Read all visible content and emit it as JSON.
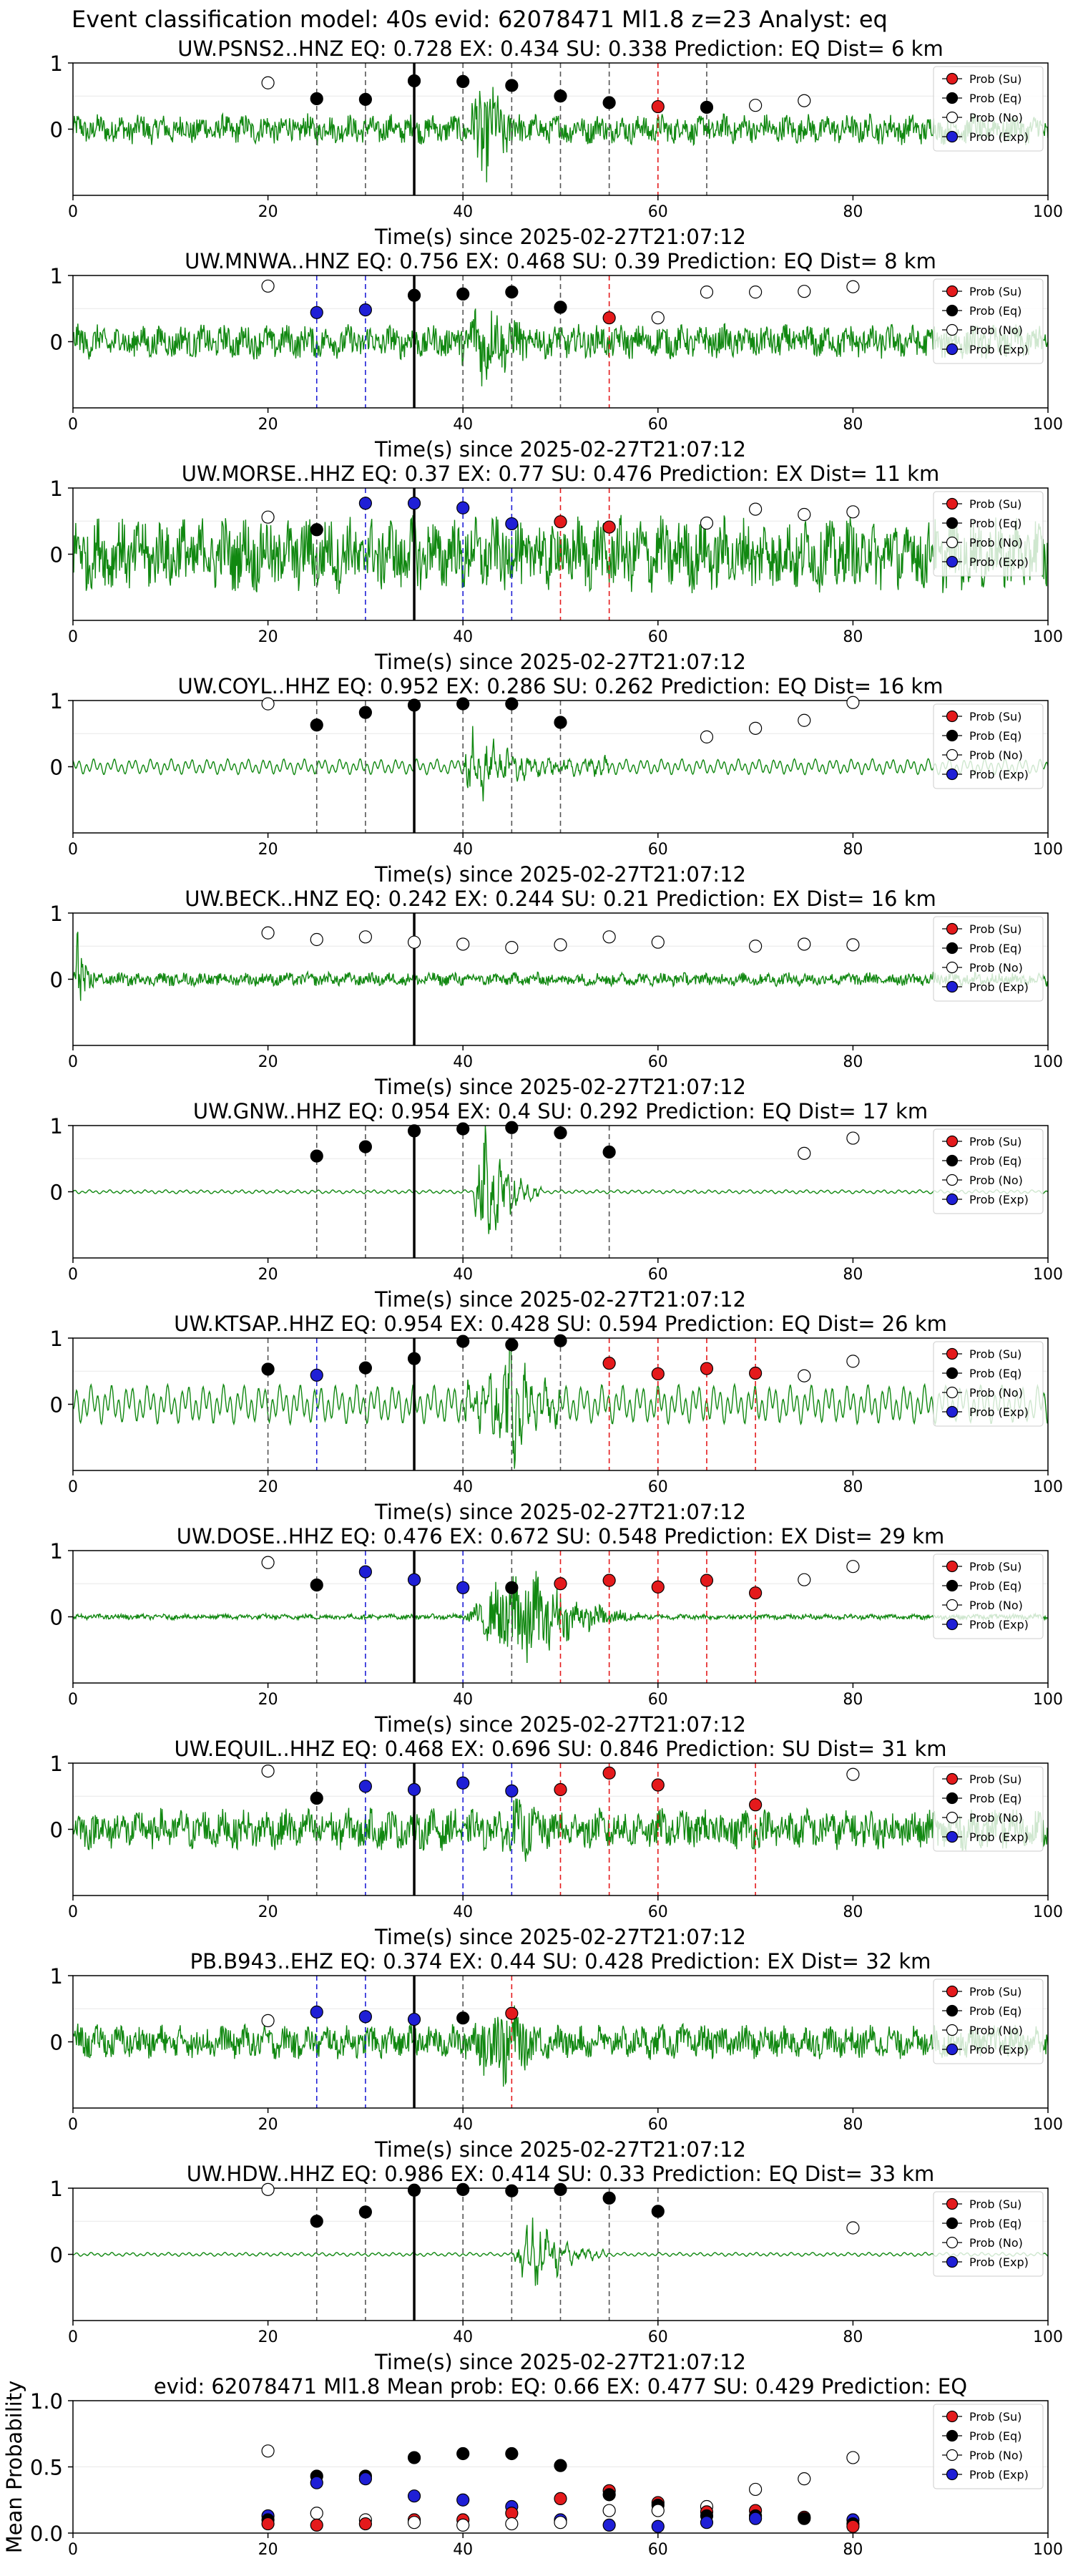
{
  "figure_title": "Event classification model: 40s evid: 62078471 Ml1.8 z=23 Analyst: eq",
  "time_label": "Time(s) since 2025-02-27T21:07:12",
  "legend": [
    "Prob (Su)",
    "Prob (Eq)",
    "Prob (No)",
    "Prob (Exp)"
  ],
  "colors": {
    "su": "#e41a1c",
    "eq": "#000000",
    "no": "#ffffff",
    "exp": "#1f1fd6",
    "waveform": "#118811"
  },
  "chart_data": [
    {
      "type": "scatter",
      "title": "UW.PSNS2..HNZ   EQ: 0.728   EX: 0.434   SU: 0.338   Prediction: EQ    Dist= 6 km",
      "xlim": [
        0,
        100
      ],
      "ylim": [
        -1,
        1
      ],
      "xticks": [
        0,
        20,
        40,
        60,
        80,
        100
      ],
      "yticks": [
        1,
        0
      ],
      "amp": 0.22,
      "burst": {
        "start": 40,
        "peak": 42,
        "end": 50,
        "amp": 0.9
      },
      "style": "noise",
      "pick": 35,
      "points": [
        [
          20,
          0.7,
          "no"
        ],
        [
          25,
          0.46,
          "eq"
        ],
        [
          30,
          0.45,
          "eq"
        ],
        [
          35,
          0.73,
          "eq"
        ],
        [
          40,
          0.72,
          "eq"
        ],
        [
          45,
          0.66,
          "eq"
        ],
        [
          50,
          0.5,
          "eq"
        ],
        [
          55,
          0.4,
          "eq"
        ],
        [
          60,
          0.34,
          "su"
        ],
        [
          65,
          0.33,
          "eq"
        ],
        [
          70,
          0.36,
          "no"
        ],
        [
          75,
          0.43,
          "no"
        ]
      ]
    },
    {
      "type": "scatter",
      "title": "UW.MNWA..HNZ   EQ: 0.756   EX: 0.468   SU: 0.39   Prediction: EQ    Dist= 8 km",
      "xlim": [
        0,
        100
      ],
      "ylim": [
        -1,
        1
      ],
      "xticks": [
        0,
        20,
        40,
        60,
        80,
        100
      ],
      "yticks": [
        1,
        0
      ],
      "amp": 0.25,
      "burst": {
        "start": 38,
        "peak": 42,
        "end": 55,
        "amp": 0.7
      },
      "style": "noise",
      "pick": 35,
      "points": [
        [
          20,
          0.84,
          "no"
        ],
        [
          25,
          0.44,
          "exp"
        ],
        [
          30,
          0.48,
          "exp"
        ],
        [
          35,
          0.7,
          "eq"
        ],
        [
          40,
          0.72,
          "eq"
        ],
        [
          45,
          0.75,
          "eq"
        ],
        [
          50,
          0.52,
          "eq"
        ],
        [
          55,
          0.36,
          "su"
        ],
        [
          60,
          0.36,
          "no"
        ],
        [
          65,
          0.75,
          "no"
        ],
        [
          70,
          0.75,
          "no"
        ],
        [
          75,
          0.76,
          "no"
        ],
        [
          80,
          0.83,
          "no"
        ]
      ]
    },
    {
      "type": "scatter",
      "title": "UW.MORSE..HHZ   EQ: 0.37   EX: 0.77   SU: 0.476   Prediction: EX    Dist= 11 km",
      "xlim": [
        0,
        100
      ],
      "ylim": [
        -1,
        1
      ],
      "xticks": [
        0,
        20,
        40,
        60,
        80,
        100
      ],
      "yticks": [
        1,
        0
      ],
      "amp": 0.55,
      "burst": {
        "start": 42,
        "peak": 46,
        "end": 52,
        "amp": 0.6
      },
      "style": "noise",
      "pick": 35,
      "points": [
        [
          20,
          0.56,
          "no"
        ],
        [
          25,
          0.37,
          "eq"
        ],
        [
          30,
          0.77,
          "exp"
        ],
        [
          35,
          0.77,
          "exp"
        ],
        [
          40,
          0.7,
          "exp"
        ],
        [
          45,
          0.46,
          "exp"
        ],
        [
          50,
          0.49,
          "su"
        ],
        [
          55,
          0.41,
          "su"
        ],
        [
          65,
          0.47,
          "no"
        ],
        [
          70,
          0.68,
          "no"
        ],
        [
          75,
          0.6,
          "no"
        ],
        [
          80,
          0.64,
          "no"
        ]
      ]
    },
    {
      "type": "scatter",
      "title": "UW.COYL..HHZ   EQ: 0.952   EX: 0.286   SU: 0.262   Prediction: EQ    Dist= 16 km",
      "xlim": [
        0,
        100
      ],
      "ylim": [
        -1,
        1
      ],
      "xticks": [
        0,
        20,
        40,
        60,
        80,
        100
      ],
      "yticks": [
        1,
        0
      ],
      "amp": 0.12,
      "burst": {
        "start": 40,
        "peak": 40.5,
        "end": 55,
        "amp": 0.45
      },
      "style": "smooth",
      "pick": 35,
      "points": [
        [
          20,
          0.95,
          "no"
        ],
        [
          25,
          0.63,
          "eq"
        ],
        [
          30,
          0.82,
          "eq"
        ],
        [
          35,
          0.93,
          "eq"
        ],
        [
          40,
          0.95,
          "eq"
        ],
        [
          45,
          0.95,
          "eq"
        ],
        [
          50,
          0.67,
          "eq"
        ],
        [
          65,
          0.45,
          "no"
        ],
        [
          70,
          0.58,
          "no"
        ],
        [
          75,
          0.7,
          "no"
        ],
        [
          80,
          0.97,
          "no"
        ]
      ]
    },
    {
      "type": "scatter",
      "title": "UW.BECK..HNZ   EQ: 0.242   EX: 0.244   SU: 0.21   Prediction: EX    Dist= 16 km",
      "xlim": [
        0,
        100
      ],
      "ylim": [
        -1,
        1
      ],
      "xticks": [
        0,
        20,
        40,
        60,
        80,
        100
      ],
      "yticks": [
        1,
        0
      ],
      "amp": 0.1,
      "burst": {
        "start": 0,
        "peak": 0.5,
        "end": 3,
        "amp": 0.8
      },
      "style": "noise",
      "pick": 35,
      "points": [
        [
          20,
          0.7,
          "no"
        ],
        [
          25,
          0.6,
          "no"
        ],
        [
          30,
          0.64,
          "no"
        ],
        [
          35,
          0.56,
          "no"
        ],
        [
          40,
          0.53,
          "no"
        ],
        [
          45,
          0.48,
          "no"
        ],
        [
          50,
          0.52,
          "no"
        ],
        [
          55,
          0.64,
          "no"
        ],
        [
          60,
          0.56,
          "no"
        ],
        [
          70,
          0.5,
          "no"
        ],
        [
          75,
          0.53,
          "no"
        ],
        [
          80,
          0.52,
          "no"
        ]
      ]
    },
    {
      "type": "scatter",
      "title": "UW.GNW..HHZ   EQ: 0.954   EX: 0.4   SU: 0.292   Prediction: EQ    Dist= 17 km",
      "xlim": [
        0,
        100
      ],
      "ylim": [
        -1,
        1
      ],
      "xticks": [
        0,
        20,
        40,
        60,
        80,
        100
      ],
      "yticks": [
        1,
        0
      ],
      "amp": 0.03,
      "burst": {
        "start": 41,
        "peak": 42,
        "end": 48,
        "amp": 0.9
      },
      "style": "smooth",
      "pick": 35,
      "points": [
        [
          25,
          0.54,
          "eq"
        ],
        [
          30,
          0.68,
          "eq"
        ],
        [
          35,
          0.92,
          "eq"
        ],
        [
          40,
          0.95,
          "eq"
        ],
        [
          45,
          0.97,
          "eq"
        ],
        [
          50,
          0.89,
          "eq"
        ],
        [
          55,
          0.6,
          "eq"
        ],
        [
          75,
          0.58,
          "no"
        ],
        [
          80,
          0.81,
          "no"
        ]
      ]
    },
    {
      "type": "scatter",
      "title": "UW.KTSAP..HHZ   EQ: 0.954   EX: 0.428   SU: 0.594   Prediction: EQ    Dist= 26 km",
      "xlim": [
        0,
        100
      ],
      "ylim": [
        -1,
        1
      ],
      "xticks": [
        0,
        20,
        40,
        60,
        80,
        100
      ],
      "yticks": [
        1,
        0
      ],
      "amp": 0.3,
      "burst": {
        "start": 40,
        "peak": 45,
        "end": 50,
        "amp": 0.9
      },
      "style": "smooth",
      "pick": 35,
      "points": [
        [
          20,
          0.53,
          "eq"
        ],
        [
          25,
          0.44,
          "exp"
        ],
        [
          30,
          0.55,
          "eq"
        ],
        [
          35,
          0.69,
          "eq"
        ],
        [
          40,
          0.95,
          "eq"
        ],
        [
          45,
          0.9,
          "eq"
        ],
        [
          50,
          0.96,
          "eq"
        ],
        [
          55,
          0.62,
          "su"
        ],
        [
          60,
          0.46,
          "su"
        ],
        [
          65,
          0.54,
          "su"
        ],
        [
          70,
          0.47,
          "su"
        ],
        [
          75,
          0.43,
          "no"
        ],
        [
          80,
          0.65,
          "no"
        ]
      ]
    },
    {
      "type": "scatter",
      "title": "UW.DOSE..HHZ   EQ: 0.476   EX: 0.672   SU: 0.548   Prediction: EX    Dist= 29 km",
      "xlim": [
        0,
        100
      ],
      "ylim": [
        -1,
        1
      ],
      "xticks": [
        0,
        20,
        40,
        60,
        80,
        100
      ],
      "yticks": [
        1,
        0
      ],
      "amp": 0.04,
      "burst": {
        "start": 40,
        "peak": 46,
        "end": 58,
        "amp": 0.9
      },
      "style": "noise",
      "pick": 35,
      "points": [
        [
          20,
          0.82,
          "no"
        ],
        [
          25,
          0.48,
          "eq"
        ],
        [
          30,
          0.68,
          "exp"
        ],
        [
          35,
          0.56,
          "exp"
        ],
        [
          40,
          0.44,
          "exp"
        ],
        [
          45,
          0.44,
          "eq"
        ],
        [
          50,
          0.5,
          "su"
        ],
        [
          55,
          0.55,
          "su"
        ],
        [
          60,
          0.45,
          "su"
        ],
        [
          65,
          0.55,
          "su"
        ],
        [
          70,
          0.36,
          "su"
        ],
        [
          75,
          0.56,
          "no"
        ],
        [
          80,
          0.76,
          "no"
        ]
      ]
    },
    {
      "type": "scatter",
      "title": "UW.EQUIL..HHZ   EQ: 0.468   EX: 0.696   SU: 0.846   Prediction: SU    Dist= 31 km",
      "xlim": [
        0,
        100
      ],
      "ylim": [
        -1,
        1
      ],
      "xticks": [
        0,
        20,
        40,
        60,
        80,
        100
      ],
      "yticks": [
        1,
        0
      ],
      "amp": 0.3,
      "burst": {
        "start": 40,
        "peak": 46,
        "end": 58,
        "amp": 0.5
      },
      "style": "noise",
      "pick": 35,
      "points": [
        [
          20,
          0.88,
          "no"
        ],
        [
          25,
          0.47,
          "eq"
        ],
        [
          30,
          0.65,
          "exp"
        ],
        [
          35,
          0.6,
          "exp"
        ],
        [
          40,
          0.7,
          "exp"
        ],
        [
          45,
          0.58,
          "exp"
        ],
        [
          50,
          0.6,
          "su"
        ],
        [
          55,
          0.85,
          "su"
        ],
        [
          60,
          0.67,
          "su"
        ],
        [
          70,
          0.37,
          "su"
        ],
        [
          80,
          0.83,
          "no"
        ]
      ]
    },
    {
      "type": "scatter",
      "title": "PB.B943..EHZ   EQ: 0.374   EX: 0.44   SU: 0.428   Prediction: EX    Dist= 32 km",
      "xlim": [
        0,
        100
      ],
      "ylim": [
        -1,
        1
      ],
      "xticks": [
        0,
        20,
        40,
        60,
        80,
        100
      ],
      "yticks": [
        1,
        0
      ],
      "amp": 0.25,
      "burst": {
        "start": 38,
        "peak": 44,
        "end": 55,
        "amp": 0.7
      },
      "style": "noise",
      "pick": 35,
      "points": [
        [
          20,
          0.32,
          "no"
        ],
        [
          25,
          0.45,
          "exp"
        ],
        [
          30,
          0.38,
          "exp"
        ],
        [
          35,
          0.34,
          "exp"
        ],
        [
          40,
          0.36,
          "eq"
        ],
        [
          45,
          0.43,
          "su"
        ]
      ]
    },
    {
      "type": "scatter",
      "title": "UW.HDW..HHZ   EQ: 0.986   EX: 0.414   SU: 0.33   Prediction: EQ    Dist= 33 km",
      "xlim": [
        0,
        100
      ],
      "ylim": [
        -1,
        1
      ],
      "xticks": [
        0,
        20,
        40,
        60,
        80,
        100
      ],
      "yticks": [
        1,
        0
      ],
      "amp": 0.03,
      "burst": {
        "start": 45,
        "peak": 47,
        "end": 55,
        "amp": 0.5
      },
      "style": "smooth",
      "pick": 35,
      "points": [
        [
          20,
          0.98,
          "no"
        ],
        [
          25,
          0.5,
          "eq"
        ],
        [
          30,
          0.64,
          "eq"
        ],
        [
          35,
          0.97,
          "eq"
        ],
        [
          40,
          0.98,
          "eq"
        ],
        [
          45,
          0.96,
          "eq"
        ],
        [
          50,
          0.98,
          "eq"
        ],
        [
          55,
          0.85,
          "eq"
        ],
        [
          60,
          0.65,
          "eq"
        ],
        [
          80,
          0.4,
          "no"
        ]
      ]
    },
    {
      "type": "scatter",
      "title": "evid: 62078471  Ml1.8   Mean prob:    EQ: 0.66   EX: 0.477   SU: 0.429   Prediction: EQ",
      "ylabel": "Mean Probability",
      "xlim": [
        0,
        100
      ],
      "ylim": [
        0,
        1
      ],
      "xticks": [
        0,
        20,
        40,
        60,
        80,
        100
      ],
      "yticks": [
        1.0,
        0.5,
        0.0
      ],
      "points": [
        [
          20,
          0.62,
          "no"
        ],
        [
          20,
          0.13,
          "exp"
        ],
        [
          20,
          0.1,
          "eq"
        ],
        [
          20,
          0.07,
          "su"
        ],
        [
          25,
          0.43,
          "eq"
        ],
        [
          25,
          0.38,
          "exp"
        ],
        [
          25,
          0.15,
          "no"
        ],
        [
          25,
          0.06,
          "su"
        ],
        [
          30,
          0.43,
          "eq"
        ],
        [
          30,
          0.41,
          "exp"
        ],
        [
          30,
          0.1,
          "no"
        ],
        [
          30,
          0.07,
          "su"
        ],
        [
          35,
          0.57,
          "eq"
        ],
        [
          35,
          0.28,
          "exp"
        ],
        [
          35,
          0.1,
          "su"
        ],
        [
          35,
          0.08,
          "no"
        ],
        [
          40,
          0.6,
          "eq"
        ],
        [
          40,
          0.25,
          "exp"
        ],
        [
          40,
          0.1,
          "su"
        ],
        [
          40,
          0.06,
          "no"
        ],
        [
          45,
          0.6,
          "eq"
        ],
        [
          45,
          0.2,
          "exp"
        ],
        [
          45,
          0.15,
          "su"
        ],
        [
          45,
          0.07,
          "no"
        ],
        [
          50,
          0.51,
          "eq"
        ],
        [
          50,
          0.26,
          "su"
        ],
        [
          50,
          0.1,
          "exp"
        ],
        [
          50,
          0.08,
          "no"
        ],
        [
          55,
          0.32,
          "su"
        ],
        [
          55,
          0.29,
          "eq"
        ],
        [
          55,
          0.17,
          "no"
        ],
        [
          55,
          0.06,
          "exp"
        ],
        [
          60,
          0.23,
          "su"
        ],
        [
          60,
          0.21,
          "eq"
        ],
        [
          60,
          0.17,
          "no"
        ],
        [
          60,
          0.05,
          "exp"
        ],
        [
          65,
          0.2,
          "no"
        ],
        [
          65,
          0.16,
          "su"
        ],
        [
          65,
          0.13,
          "eq"
        ],
        [
          65,
          0.08,
          "exp"
        ],
        [
          70,
          0.33,
          "no"
        ],
        [
          70,
          0.17,
          "su"
        ],
        [
          70,
          0.13,
          "eq"
        ],
        [
          70,
          0.11,
          "exp"
        ],
        [
          75,
          0.41,
          "no"
        ],
        [
          75,
          0.12,
          "su"
        ],
        [
          75,
          0.11,
          "eq"
        ],
        [
          80,
          0.57,
          "no"
        ],
        [
          80,
          0.1,
          "exp"
        ],
        [
          80,
          0.07,
          "eq"
        ],
        [
          80,
          0.05,
          "su"
        ]
      ]
    }
  ]
}
